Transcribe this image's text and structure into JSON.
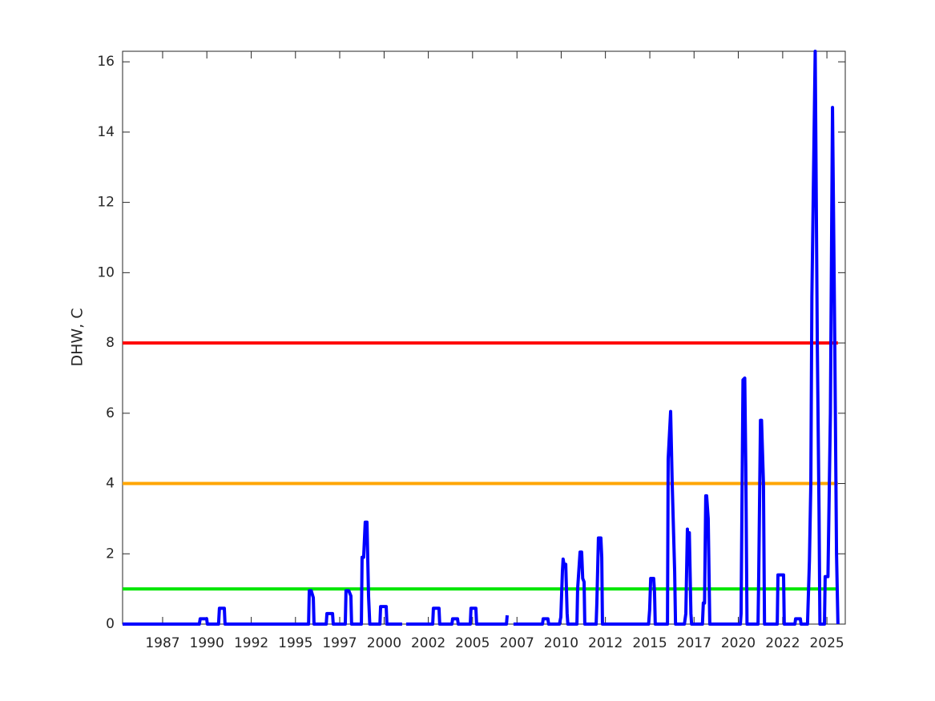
{
  "chart_data": {
    "type": "line",
    "ylabel": "DHW, C",
    "xlim": [
      1984.71,
      2026.05
    ],
    "ylim": [
      0,
      16.3
    ],
    "xticks": [
      {
        "value": 1987.0,
        "label": "1987"
      },
      {
        "value": 1989.53,
        "label": "1990"
      },
      {
        "value": 1992.07,
        "label": "1992"
      },
      {
        "value": 1994.6,
        "label": "1995"
      },
      {
        "value": 1997.13,
        "label": "1997"
      },
      {
        "value": 1999.67,
        "label": "2000"
      },
      {
        "value": 2002.2,
        "label": "2002"
      },
      {
        "value": 2004.73,
        "label": "2005"
      },
      {
        "value": 2007.27,
        "label": "2007"
      },
      {
        "value": 2009.8,
        "label": "2010"
      },
      {
        "value": 2012.33,
        "label": "2012"
      },
      {
        "value": 2014.87,
        "label": "2015"
      },
      {
        "value": 2017.4,
        "label": "2017"
      },
      {
        "value": 2019.93,
        "label": "2020"
      },
      {
        "value": 2022.47,
        "label": "2022"
      },
      {
        "value": 2025.0,
        "label": "2025"
      }
    ],
    "yticks": [
      0,
      2,
      4,
      6,
      8,
      10,
      12,
      14,
      16
    ],
    "hlines": [
      {
        "value": 1,
        "color": "#00e600"
      },
      {
        "value": 4,
        "color": "#ffa500"
      },
      {
        "value": 8,
        "color": "#ff0000"
      }
    ],
    "series": [
      {
        "color": "#0000ff",
        "x": [
          1984.71,
          1989.1,
          1989.15,
          1989.52,
          1989.56,
          1990.2,
          1990.25,
          1990.53,
          1990.57,
          1995.35,
          1995.39,
          1995.5,
          1995.62,
          1995.66,
          1996.36,
          1996.4,
          1996.72,
          1996.76,
          1997.45,
          1997.49,
          1997.65,
          1997.77,
          1997.81,
          1998.37,
          1998.41,
          1998.5,
          1998.59,
          1998.69,
          1998.78,
          1998.85,
          1999.43,
          1999.47,
          1999.79,
          1999.83,
          2000.7,
          2000.8,
          2000.93,
          2002.45,
          2002.49,
          2002.81,
          2002.85,
          2003.55,
          2003.59,
          2003.87,
          2003.91,
          2004.6,
          2004.64,
          2004.92,
          2004.96,
          2006.67,
          2006.71,
          2006.9,
          2007.07,
          2008.73,
          2008.77,
          2009.04,
          2009.08,
          2009.7,
          2009.78,
          2009.87,
          2009.91,
          2009.96,
          2010.06,
          2010.14,
          2010.18,
          2010.7,
          2010.74,
          2010.88,
          2010.97,
          2011.03,
          2011.11,
          2011.15,
          2011.8,
          2011.84,
          2011.93,
          2012.07,
          2012.12,
          2012.16,
          2014.8,
          2014.86,
          2014.92,
          2015.09,
          2015.14,
          2015.18,
          2015.88,
          2015.92,
          2016.06,
          2016.15,
          2016.29,
          2016.34,
          2016.85,
          2016.93,
          2017.02,
          2017.08,
          2017.13,
          2017.22,
          2017.26,
          2017.88,
          2017.93,
          2018.0,
          2018.07,
          2018.12,
          2018.21,
          2018.3,
          2020.05,
          2020.09,
          2020.2,
          2020.3,
          2020.36,
          2020.43,
          2021.06,
          2021.1,
          2021.2,
          2021.26,
          2021.37,
          2021.43,
          2022.16,
          2022.2,
          2022.52,
          2022.56,
          2023.17,
          2023.21,
          2023.48,
          2023.52,
          2023.89,
          2024.0,
          2024.08,
          2024.14,
          2024.33,
          2024.45,
          2024.55,
          2024.6,
          2024.86,
          2024.9,
          2025.06,
          2025.2,
          2025.32,
          2025.45,
          2025.55,
          2025.63
        ],
        "values": [
          0,
          0,
          0.15,
          0.15,
          0,
          0,
          0.45,
          0.45,
          0,
          0,
          0.95,
          0.95,
          0.75,
          0,
          0,
          0.3,
          0.3,
          0,
          0,
          0.95,
          0.95,
          0.8,
          0,
          0,
          1.9,
          1.9,
          2.9,
          2.9,
          0.8,
          0,
          0,
          0.5,
          0.5,
          0,
          0,
          null,
          0,
          0,
          0.45,
          0.45,
          0,
          0,
          0.15,
          0.15,
          0,
          0,
          0.45,
          0.45,
          0,
          0,
          0.25,
          null,
          0,
          0,
          0.15,
          0.15,
          0,
          0,
          0.2,
          1.5,
          1.85,
          1.7,
          1.7,
          0.3,
          0,
          0,
          1.0,
          2.05,
          2.05,
          1.3,
          1.2,
          0,
          0,
          0.6,
          2.45,
          2.45,
          1.9,
          0,
          0,
          0.4,
          1.3,
          1.3,
          0.9,
          0,
          0,
          4.7,
          6.05,
          4.0,
          1.5,
          0,
          0,
          0.3,
          2.7,
          1.7,
          2.6,
          0.3,
          0,
          0,
          0.6,
          0.6,
          3.65,
          3.65,
          3.0,
          0,
          0,
          0.3,
          6.95,
          7.0,
          4.5,
          0,
          0,
          1.4,
          5.8,
          5.8,
          4.0,
          0,
          0,
          1.4,
          1.4,
          0,
          0,
          0.15,
          0.15,
          0,
          0,
          1.8,
          4.0,
          9.3,
          16.3,
          8.0,
          3.2,
          0,
          0,
          1.35,
          1.35,
          6.0,
          14.7,
          8.0,
          2.0,
          0
        ]
      }
    ]
  }
}
